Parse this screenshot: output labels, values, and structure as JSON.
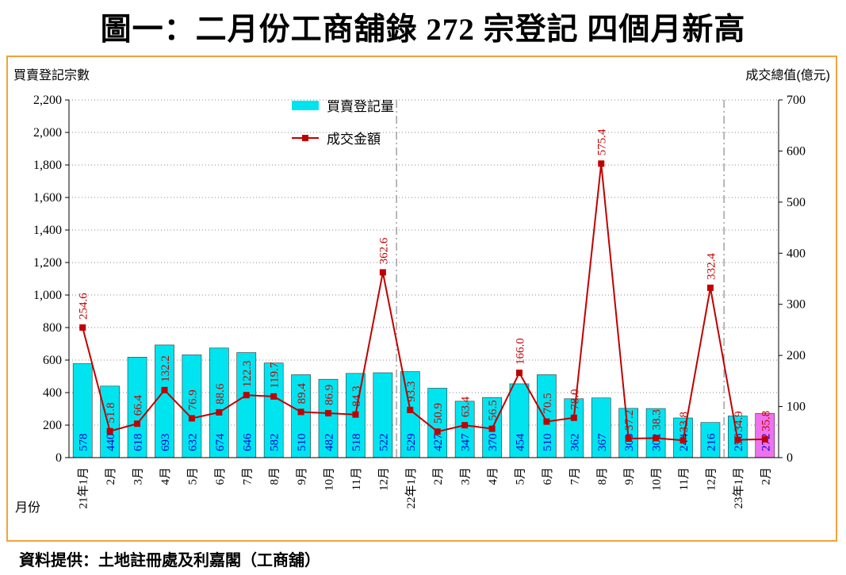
{
  "source": "資料提供：土地註冊處及利嘉閣（工商舖）",
  "colors": {
    "bar": "#00E4F0",
    "bar_highlight": "#EE72EE",
    "bar_label": "#0000CC",
    "line": "#C00000",
    "frame_border": "#F2A338",
    "grid": "#888888",
    "separator": "#8A8A8A",
    "axis": "#000000"
  },
  "chart_data": {
    "type": "combo",
    "title": "圖一：二月份工商舖錄 272 宗登記  四個月新高",
    "xlabel": "月份",
    "ylabel_left": "買賣登記宗數",
    "ylabel_right": "成交總值(億元)",
    "legend_position": "top-center",
    "grid": "dotted-horizontal",
    "categories": [
      "21年1月",
      "2月",
      "3月",
      "4月",
      "5月",
      "6月",
      "7月",
      "8月",
      "9月",
      "10月",
      "11月",
      "12月",
      "22年1月",
      "2月",
      "3月",
      "4月",
      "5月",
      "6月",
      "7月",
      "8月",
      "9月",
      "10月",
      "11月",
      "12月",
      "23年1月",
      "2月"
    ],
    "series": [
      {
        "name": "買賣登記量",
        "type": "bar",
        "axis": "left",
        "values": [
          578,
          440,
          618,
          693,
          632,
          674,
          646,
          582,
          510,
          482,
          518,
          522,
          529,
          427,
          347,
          370,
          454,
          510,
          362,
          367,
          303,
          302,
          244,
          216,
          256,
          272
        ]
      },
      {
        "name": "成交金額",
        "type": "line",
        "axis": "right",
        "values": [
          254.6,
          51.8,
          66.4,
          132.2,
          76.9,
          88.6,
          122.3,
          119.7,
          89.4,
          86.9,
          84.3,
          362.6,
          93.3,
          50.9,
          63.4,
          56.5,
          166.0,
          70.5,
          78.0,
          575.4,
          37.2,
          38.3,
          33.8,
          332.4,
          34.9,
          35.8
        ]
      }
    ],
    "left_axis": {
      "min": 0,
      "max": 2200,
      "step": 200
    },
    "right_axis": {
      "min": 0,
      "max": 700,
      "step": 100
    },
    "highlight_index": 25,
    "separators_after_index": [
      11,
      23
    ]
  }
}
